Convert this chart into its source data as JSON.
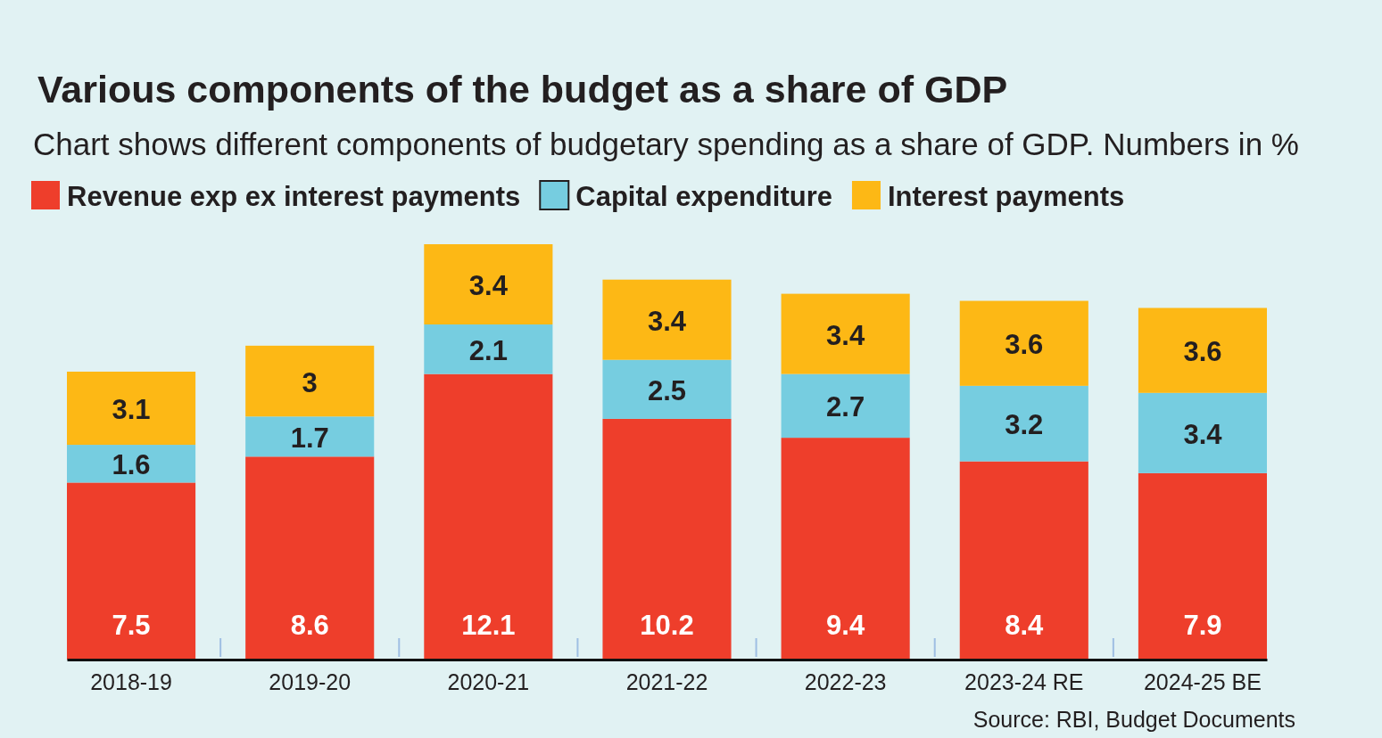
{
  "chart_data": {
    "type": "bar",
    "title": "Various components of the budget as a share of GDP",
    "subtitle": "Chart shows different components of budgetary spending as a share of GDP. Numbers in %",
    "categories": [
      "2018-19",
      "2019-20",
      "2020-21",
      "2021-22",
      "2022-23",
      "2023-24 RE",
      "2024-25 BE"
    ],
    "series": [
      {
        "name": "Revenue exp ex interest payments",
        "color": "#ee3e2b",
        "values": [
          7.5,
          8.6,
          12.1,
          10.2,
          9.4,
          8.4,
          7.9
        ]
      },
      {
        "name": "Capital expenditure",
        "color": "#76cde0",
        "values": [
          1.6,
          1.7,
          2.1,
          2.5,
          2.7,
          3.2,
          3.4
        ]
      },
      {
        "name": "Interest payments",
        "color": "#fdb815",
        "values": [
          3.1,
          3,
          3.4,
          3.4,
          3.4,
          3.6,
          3.6
        ]
      }
    ],
    "stacked": true,
    "data_labels": true,
    "legend": "top",
    "annotations": [
      "Source: RBI, Budget Documents"
    ]
  }
}
